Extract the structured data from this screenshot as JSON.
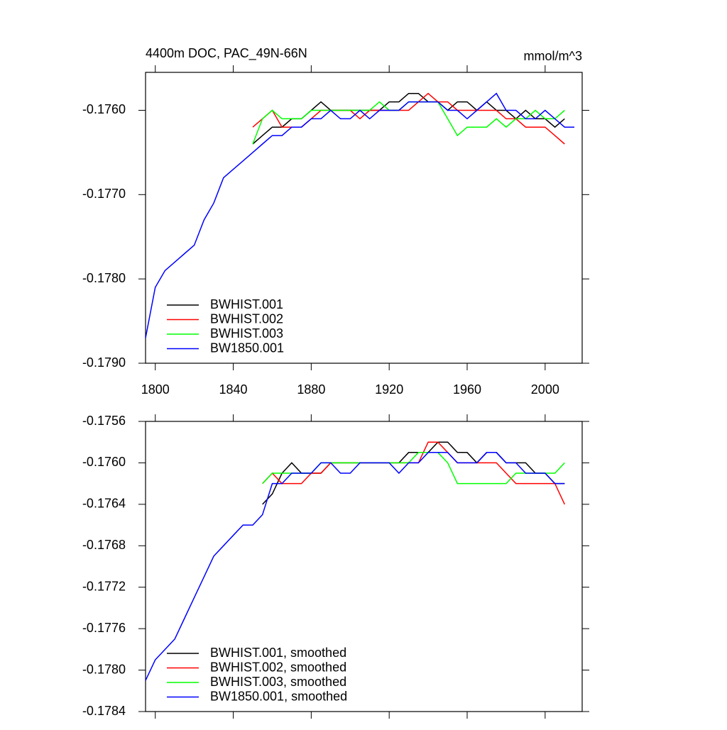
{
  "chart_data": [
    {
      "type": "line",
      "title": "4400m DOC, PAC_49N-66N",
      "units": "mmol/m^3",
      "x": [
        1795,
        1800,
        1805,
        1810,
        1815,
        1820,
        1825,
        1830,
        1835,
        1840,
        1845,
        1850,
        1855,
        1860,
        1865,
        1870,
        1875,
        1880,
        1885,
        1890,
        1895,
        1900,
        1905,
        1910,
        1915,
        1920,
        1925,
        1930,
        1935,
        1940,
        1945,
        1950,
        1955,
        1960,
        1965,
        1970,
        1975,
        1980,
        1985,
        1990,
        1995,
        2000,
        2005,
        2010,
        2015
      ],
      "xlim": [
        1795,
        2019
      ],
      "xticks": [
        1800,
        1840,
        1880,
        1920,
        1960,
        2000
      ],
      "x_tick_labels": true,
      "ylim": [
        -0.179,
        -0.17555
      ],
      "yticks": [
        {
          "value": -0.179,
          "label": "-0.1790"
        },
        {
          "value": -0.178,
          "label": "-0.1780"
        },
        {
          "value": -0.177,
          "label": "-0.1770"
        },
        {
          "value": -0.176,
          "label": "-0.1760"
        }
      ],
      "legend": "lower left",
      "series": [
        {
          "name": "BWHIST.001",
          "color": "#000000",
          "values": [
            null,
            null,
            null,
            null,
            null,
            null,
            null,
            null,
            null,
            null,
            null,
            -0.1764,
            -0.1763,
            -0.1762,
            -0.1762,
            -0.1761,
            -0.1761,
            -0.176,
            -0.1759,
            -0.176,
            -0.176,
            -0.176,
            -0.176,
            -0.176,
            -0.176,
            -0.1759,
            -0.1759,
            -0.1758,
            -0.1758,
            -0.1759,
            -0.1759,
            -0.176,
            -0.1759,
            -0.1759,
            -0.176,
            -0.1759,
            -0.176,
            -0.176,
            -0.1761,
            -0.176,
            -0.1761,
            -0.1761,
            -0.1762,
            -0.1761,
            null
          ]
        },
        {
          "name": "BWHIST.002",
          "color": "#ff0000",
          "values": [
            null,
            null,
            null,
            null,
            null,
            null,
            null,
            null,
            null,
            null,
            null,
            -0.1762,
            -0.1761,
            -0.176,
            -0.1762,
            -0.1762,
            -0.1762,
            -0.1761,
            -0.176,
            -0.176,
            -0.176,
            -0.176,
            -0.1761,
            -0.176,
            -0.176,
            -0.176,
            -0.176,
            -0.176,
            -0.1759,
            -0.1758,
            -0.1759,
            -0.1759,
            -0.176,
            -0.176,
            -0.176,
            -0.176,
            -0.176,
            -0.1761,
            -0.1761,
            -0.1762,
            -0.1762,
            -0.1762,
            -0.1763,
            -0.1764,
            null
          ]
        },
        {
          "name": "BWHIST.003",
          "color": "#00ff00",
          "values": [
            null,
            null,
            null,
            null,
            null,
            null,
            null,
            null,
            null,
            null,
            null,
            -0.1764,
            -0.1761,
            -0.176,
            -0.1761,
            -0.1761,
            -0.1761,
            -0.176,
            -0.176,
            -0.176,
            -0.176,
            -0.176,
            -0.176,
            -0.176,
            -0.1759,
            -0.176,
            -0.176,
            -0.1759,
            -0.1759,
            -0.1759,
            -0.1759,
            -0.1761,
            -0.1763,
            -0.1762,
            -0.1762,
            -0.1762,
            -0.1761,
            -0.1762,
            -0.1761,
            -0.1761,
            -0.176,
            -0.1761,
            -0.1761,
            -0.176,
            null
          ]
        },
        {
          "name": "BW1850.001",
          "color": "#0000ff",
          "values": [
            -0.1787,
            -0.1781,
            -0.1779,
            -0.1778,
            -0.1777,
            -0.1776,
            -0.1773,
            -0.1771,
            -0.1768,
            -0.1767,
            -0.1766,
            -0.1765,
            -0.1764,
            -0.1763,
            -0.1763,
            -0.1762,
            -0.1762,
            -0.1761,
            -0.1761,
            -0.176,
            -0.1761,
            -0.1761,
            -0.176,
            -0.1761,
            -0.176,
            -0.176,
            -0.176,
            -0.1759,
            -0.1759,
            -0.1759,
            -0.1759,
            -0.176,
            -0.176,
            -0.1761,
            -0.176,
            -0.1759,
            -0.1758,
            -0.176,
            -0.176,
            -0.1761,
            -0.1761,
            -0.176,
            -0.1761,
            -0.1762,
            -0.1762
          ]
        }
      ]
    },
    {
      "type": "line",
      "x": [
        1795,
        1800,
        1805,
        1810,
        1815,
        1820,
        1825,
        1830,
        1835,
        1840,
        1845,
        1850,
        1855,
        1860,
        1865,
        1870,
        1875,
        1880,
        1885,
        1890,
        1895,
        1900,
        1905,
        1910,
        1915,
        1920,
        1925,
        1930,
        1935,
        1940,
        1945,
        1950,
        1955,
        1960,
        1965,
        1970,
        1975,
        1980,
        1985,
        1990,
        1995,
        2000,
        2005,
        2010,
        2015
      ],
      "xlim": [
        1795,
        2019
      ],
      "xticks": [
        1800,
        1840,
        1880,
        1920,
        1960,
        2000
      ],
      "x_tick_labels": false,
      "ylim": [
        -0.1784,
        -0.1756
      ],
      "yticks": [
        {
          "value": -0.1784,
          "label": "-0.1784"
        },
        {
          "value": -0.178,
          "label": "-0.1780"
        },
        {
          "value": -0.1776,
          "label": "-0.1776"
        },
        {
          "value": -0.1772,
          "label": "-0.1772"
        },
        {
          "value": -0.1768,
          "label": "-0.1768"
        },
        {
          "value": -0.1764,
          "label": "-0.1764"
        },
        {
          "value": -0.176,
          "label": "-0.1760"
        },
        {
          "value": -0.1756,
          "label": "-0.1756"
        }
      ],
      "legend": "lower left",
      "series": [
        {
          "name": "BWHIST.001, smoothed",
          "color": "#000000",
          "values": [
            null,
            null,
            null,
            null,
            null,
            null,
            null,
            null,
            null,
            null,
            null,
            null,
            -0.1764,
            -0.1763,
            -0.1761,
            -0.176,
            -0.1761,
            -0.1761,
            -0.1761,
            -0.176,
            -0.176,
            -0.176,
            -0.176,
            -0.176,
            -0.176,
            -0.176,
            -0.176,
            -0.1759,
            -0.1759,
            -0.1759,
            -0.1758,
            -0.1758,
            -0.1759,
            -0.1759,
            -0.176,
            -0.1759,
            -0.1759,
            -0.176,
            -0.176,
            -0.176,
            -0.1761,
            -0.1761,
            -0.1762,
            -0.1762,
            null
          ]
        },
        {
          "name": "BWHIST.002, smoothed",
          "color": "#ff0000",
          "values": [
            null,
            null,
            null,
            null,
            null,
            null,
            null,
            null,
            null,
            null,
            null,
            null,
            -0.1762,
            -0.1761,
            -0.1762,
            -0.1762,
            -0.1762,
            -0.1761,
            -0.1761,
            -0.176,
            -0.176,
            -0.176,
            -0.176,
            -0.176,
            -0.176,
            -0.176,
            -0.176,
            -0.176,
            -0.176,
            -0.1758,
            -0.1758,
            -0.1759,
            -0.176,
            -0.176,
            -0.176,
            -0.176,
            -0.176,
            -0.1761,
            -0.1762,
            -0.1762,
            -0.1762,
            -0.1762,
            -0.1762,
            -0.1764,
            null
          ]
        },
        {
          "name": "BWHIST.003, smoothed",
          "color": "#00ff00",
          "values": [
            null,
            null,
            null,
            null,
            null,
            null,
            null,
            null,
            null,
            null,
            null,
            null,
            -0.1762,
            -0.1761,
            -0.1761,
            -0.1761,
            -0.1761,
            -0.1761,
            -0.176,
            -0.176,
            -0.176,
            -0.176,
            -0.176,
            -0.176,
            -0.176,
            -0.176,
            -0.176,
            -0.176,
            -0.1759,
            -0.1759,
            -0.1759,
            -0.176,
            -0.1762,
            -0.1762,
            -0.1762,
            -0.1762,
            -0.1762,
            -0.1762,
            -0.1761,
            -0.1761,
            -0.1761,
            -0.1761,
            -0.1761,
            -0.176,
            null
          ]
        },
        {
          "name": "BW1850.001, smoothed",
          "color": "#0000ff",
          "values": [
            -0.1781,
            -0.1779,
            -0.1778,
            -0.1777,
            -0.1775,
            -0.1773,
            -0.1771,
            -0.1769,
            -0.1768,
            -0.1767,
            -0.1766,
            -0.1766,
            -0.1765,
            -0.1762,
            -0.1762,
            -0.1761,
            -0.1761,
            -0.1761,
            -0.176,
            -0.176,
            -0.1761,
            -0.1761,
            -0.176,
            -0.176,
            -0.176,
            -0.176,
            -0.1761,
            -0.176,
            -0.176,
            -0.1759,
            -0.1759,
            -0.1759,
            -0.176,
            -0.176,
            -0.176,
            -0.1759,
            -0.1759,
            -0.176,
            -0.176,
            -0.1761,
            -0.1761,
            -0.1761,
            -0.1762,
            -0.1762,
            null
          ]
        }
      ]
    }
  ]
}
